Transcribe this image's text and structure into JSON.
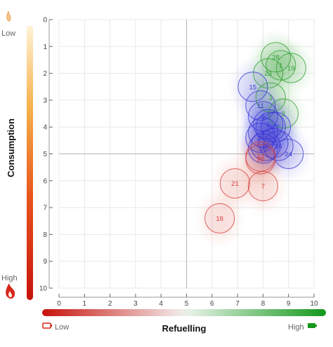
{
  "chart_data": {
    "type": "scatter",
    "xlabel": "Refuelling",
    "ylabel": "Consumption",
    "x_axis_ticks": [
      "0",
      "1",
      "2",
      "3",
      "4",
      "5",
      "6",
      "7",
      "8",
      "9",
      "10"
    ],
    "y_axis_ticks": [
      "0",
      "1",
      "2",
      "3",
      "4",
      "5",
      "6",
      "7",
      "8",
      "9",
      "10"
    ],
    "xlim": [
      0,
      10
    ],
    "ylim": [
      0,
      10
    ],
    "y_reversed": true,
    "grid": true,
    "reference_lines": {
      "x": 5,
      "y": 5
    },
    "x_legend": {
      "low": "Low",
      "high": "High"
    },
    "y_legend": {
      "low": "Low",
      "high": "High"
    },
    "colors": {
      "green": "#2ea02e",
      "blue": "#3a3ad8",
      "red": "#d8403a",
      "grid": "#e8e8e8",
      "reference": "#b5b5b5"
    },
    "points": [
      {
        "label": "28",
        "x": 8.5,
        "y": 1.4,
        "group": "green"
      },
      {
        "label": "1",
        "x": 8.7,
        "y": 1.7,
        "group": "green"
      },
      {
        "label": "19",
        "x": 9.1,
        "y": 1.8,
        "group": "green"
      },
      {
        "label": "23",
        "x": 8.2,
        "y": 2.0,
        "group": "green"
      },
      {
        "label": "15",
        "x": 7.6,
        "y": 2.5,
        "group": "blue"
      },
      {
        "label": "3",
        "x": 8.3,
        "y": 2.9,
        "group": "green"
      },
      {
        "label": "11",
        "x": 7.9,
        "y": 3.2,
        "group": "blue"
      },
      {
        "label": "2",
        "x": 8.8,
        "y": 3.5,
        "group": "green"
      },
      {
        "label": "8",
        "x": 8.0,
        "y": 3.6,
        "group": "blue"
      },
      {
        "label": "6",
        "x": 8.2,
        "y": 3.9,
        "group": "blue"
      },
      {
        "label": "9",
        "x": 8.3,
        "y": 4.0,
        "group": "blue"
      },
      {
        "label": "27",
        "x": 8.5,
        "y": 4.0,
        "group": "blue"
      },
      {
        "label": "4",
        "x": 8.0,
        "y": 4.2,
        "group": "blue"
      },
      {
        "label": "14",
        "x": 7.9,
        "y": 4.4,
        "group": "blue"
      },
      {
        "label": "5",
        "x": 8.4,
        "y": 4.6,
        "group": "blue"
      },
      {
        "label": "26",
        "x": 8.1,
        "y": 4.7,
        "group": "blue"
      },
      {
        "label": "16",
        "x": 8.6,
        "y": 4.7,
        "group": "blue"
      },
      {
        "label": "10",
        "x": 8.0,
        "y": 4.8,
        "group": "blue"
      },
      {
        "label": "24",
        "x": 9.0,
        "y": 5.0,
        "group": "blue"
      },
      {
        "label": "17",
        "x": 7.9,
        "y": 5.1,
        "group": "red"
      },
      {
        "label": "20",
        "x": 7.9,
        "y": 5.2,
        "group": "red"
      },
      {
        "label": "21",
        "x": 6.9,
        "y": 6.1,
        "group": "red"
      },
      {
        "label": "7",
        "x": 8.0,
        "y": 6.2,
        "group": "red"
      },
      {
        "label": "18",
        "x": 6.3,
        "y": 7.4,
        "group": "red"
      }
    ]
  }
}
